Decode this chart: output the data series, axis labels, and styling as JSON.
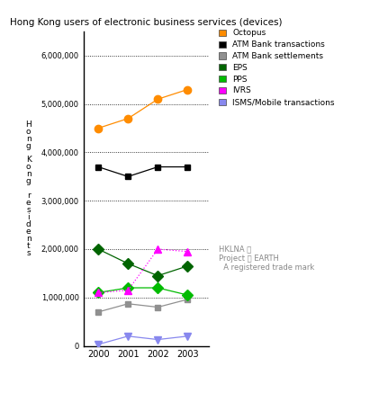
{
  "title": "Hong Kong users of electronic business services (devices)",
  "years": [
    2000,
    2001,
    2002,
    2003
  ],
  "series": [
    {
      "name": "Octopus",
      "values": [
        4500000,
        4700000,
        5100000,
        5300000
      ],
      "color": "#FF8C00",
      "marker": "o",
      "linestyle": "-",
      "markersize": 6
    },
    {
      "name": "ATM Bank transactions",
      "values": [
        3700000,
        3500000,
        3700000,
        3700000
      ],
      "color": "#000000",
      "marker": "s",
      "linestyle": "-",
      "markersize": 5
    },
    {
      "name": "ATM Bank settlements",
      "values": [
        700000,
        870000,
        800000,
        960000
      ],
      "color": "#909090",
      "marker": "s",
      "linestyle": "-",
      "markersize": 5
    },
    {
      "name": "EPS",
      "values": [
        2000000,
        1700000,
        1450000,
        1650000
      ],
      "color": "#006400",
      "marker": "D",
      "linestyle": "-",
      "markersize": 6
    },
    {
      "name": "PPS",
      "values": [
        1100000,
        1200000,
        1200000,
        1050000
      ],
      "color": "#00BB00",
      "marker": "D",
      "linestyle": "-",
      "markersize": 6
    },
    {
      "name": "IVRS",
      "values": [
        1100000,
        1150000,
        2000000,
        1950000
      ],
      "color": "#FF00FF",
      "marker": "^",
      "linestyle": ":",
      "markersize": 6
    },
    {
      "name": "ISMS/Mobile transactions",
      "values": [
        30000,
        200000,
        130000,
        200000
      ],
      "color": "#8888EE",
      "marker": "v",
      "linestyle": "-",
      "markersize": 6
    }
  ],
  "ylim": [
    0,
    6500000
  ],
  "yticks": [
    0,
    1000000,
    2000000,
    3000000,
    4000000,
    5000000,
    6000000
  ],
  "ytick_labels": [
    "0",
    "1,000,000",
    "2,000,000",
    "3,000,000",
    "4,000,000",
    "5,000,000",
    "6,000,000"
  ],
  "background_color": "#ffffff",
  "legend_names": [
    "Octopus",
    "ATM Bank transactions",
    "ATM Bank settlements",
    "EPS",
    "PPS",
    "IVRS",
    "ISMS/Mobile transactions"
  ],
  "legend_colors": [
    "#FF8C00",
    "#000000",
    "#909090",
    "#006400",
    "#00BB00",
    "#FF00FF",
    "#8888EE"
  ],
  "title_fontsize": 7.5,
  "ylabel_text": "H\no\nn\ng\n \nK\no\nn\ng\n \nr\ne\ns\ni\nd\ne\nn\nt\ns"
}
